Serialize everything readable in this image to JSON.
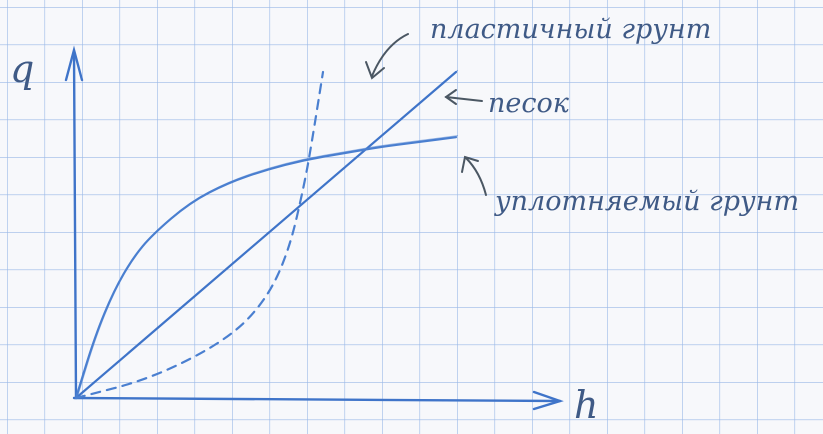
{
  "chart_data": {
    "type": "line",
    "title": "",
    "xlabel": "h",
    "ylabel": "q",
    "grid": true,
    "xlim": [
      0,
      10
    ],
    "ylim": [
      0,
      10
    ],
    "series": [
      {
        "name": "песок",
        "style": "solid",
        "color": "#3f74c9",
        "x": [
          0,
          10
        ],
        "y": [
          0,
          10
        ]
      },
      {
        "name": "уплотняемый грунт",
        "style": "solid",
        "color": "#4a7fd0",
        "x": [
          0,
          0.5,
          1,
          1.5,
          2,
          3,
          4,
          5,
          6,
          7,
          8,
          9,
          10
        ],
        "y": [
          0,
          1.9,
          3.3,
          4.3,
          5.0,
          6.0,
          6.6,
          7.0,
          7.3,
          7.5,
          7.7,
          7.85,
          8.0
        ]
      },
      {
        "name": "пластичный грунт",
        "style": "dashed",
        "color": "#4a7fd0",
        "x": [
          0,
          2,
          4,
          5,
          5.6,
          6.0,
          6.2,
          6.5
        ],
        "y": [
          0,
          0.6,
          1.8,
          3.0,
          4.5,
          6.5,
          7.8,
          10.0
        ]
      }
    ]
  }
}
